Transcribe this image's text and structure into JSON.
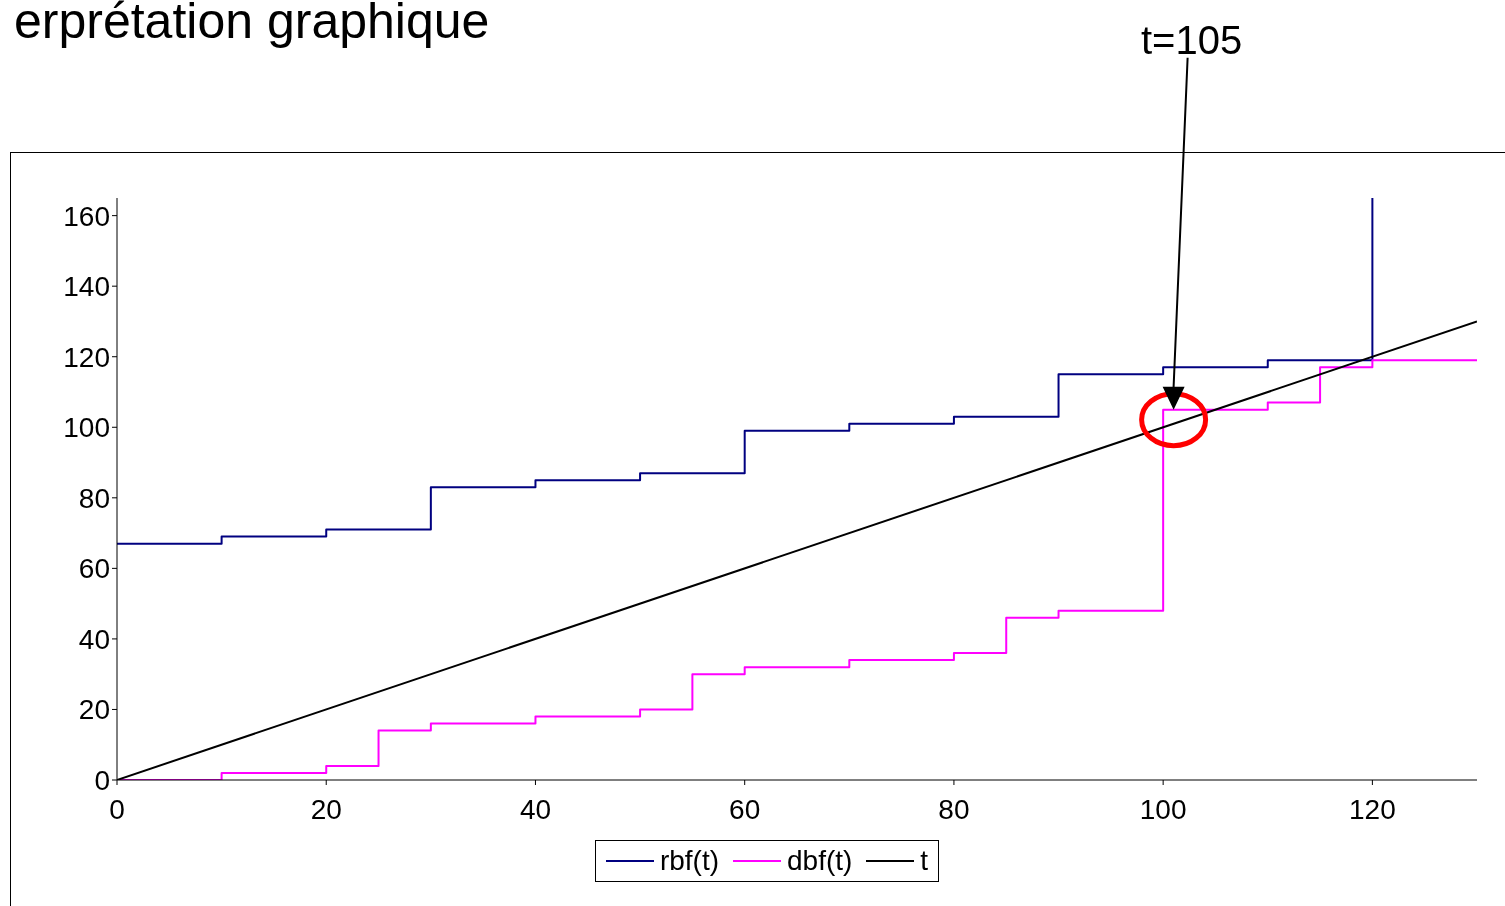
{
  "chart_data": {
    "type": "step",
    "title": "erprétation graphique",
    "xlim": [
      0,
      130
    ],
    "xticks": [
      0,
      20,
      40,
      60,
      80,
      100,
      120
    ],
    "ylim": [
      0,
      165
    ],
    "yticks": [
      0,
      20,
      40,
      60,
      80,
      100,
      120,
      140,
      160
    ],
    "grid": false,
    "legend": "bottom",
    "marker": "none",
    "line_style": "solid",
    "series": [
      {
        "name": "rbf(t)",
        "color": "#000080",
        "x": [
          0,
          10,
          20,
          30,
          40,
          50,
          60,
          70,
          80,
          90,
          100,
          110,
          120
        ],
        "values": [
          67,
          69,
          71,
          83,
          85,
          87,
          99,
          101,
          103,
          115,
          117,
          119,
          165
        ]
      },
      {
        "name": "dbf(t)",
        "color": "#ff00ff",
        "x": [
          0,
          10,
          20,
          25,
          30,
          40,
          50,
          55,
          60,
          70,
          80,
          85,
          90,
          100,
          110,
          115,
          120,
          130
        ],
        "values": [
          0,
          2,
          4,
          14,
          16,
          18,
          20,
          30,
          32,
          34,
          36,
          46,
          48,
          105,
          107,
          117,
          119,
          119
        ]
      },
      {
        "name": "t",
        "type": "line",
        "color": "#000000",
        "x": [
          0,
          130
        ],
        "values": [
          0,
          130
        ]
      }
    ],
    "annotations": [
      "t=105"
    ]
  }
}
